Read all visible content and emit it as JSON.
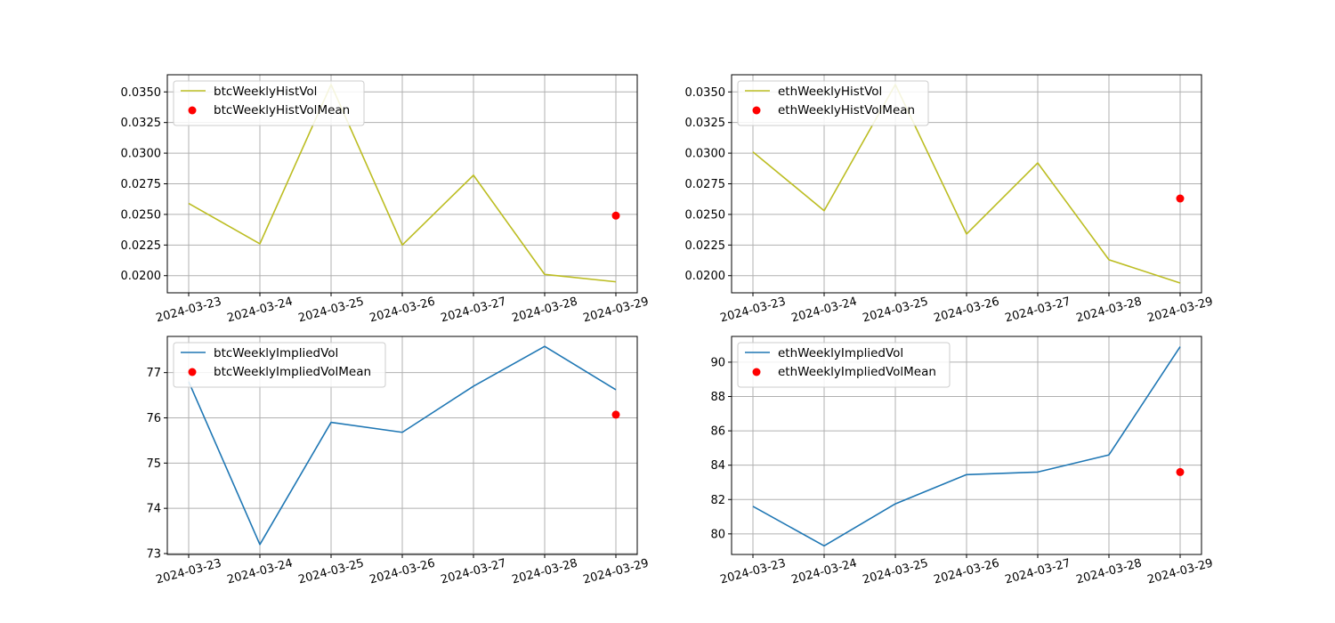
{
  "chart_data": [
    {
      "type": "line",
      "x": [
        "2024-03-23",
        "2024-03-24",
        "2024-03-25",
        "2024-03-26",
        "2024-03-27",
        "2024-03-28",
        "2024-03-29"
      ],
      "series": [
        {
          "name": "btcWeeklyHistVol",
          "kind": "line",
          "color": "#bcbd22",
          "values": [
            0.0259,
            0.0226,
            0.0356,
            0.0225,
            0.0282,
            0.0201,
            0.0195
          ]
        },
        {
          "name": "btcWeeklyHistVolMean",
          "kind": "scatter",
          "color": "#ff0000",
          "x": [
            "2024-03-29"
          ],
          "values": [
            0.0249
          ]
        }
      ],
      "ylim": [
        0.0186,
        0.0364
      ],
      "yticks": [
        0.02,
        0.0225,
        0.025,
        0.0275,
        0.03,
        0.0325,
        0.035
      ],
      "ytick_labels": [
        "0.0200",
        "0.0225",
        "0.0250",
        "0.0275",
        "0.0300",
        "0.0325",
        "0.0350"
      ],
      "grid": true,
      "legend": "upper-left"
    },
    {
      "type": "line",
      "x": [
        "2024-03-23",
        "2024-03-24",
        "2024-03-25",
        "2024-03-26",
        "2024-03-27",
        "2024-03-28",
        "2024-03-29"
      ],
      "series": [
        {
          "name": "ethWeeklyHistVol",
          "kind": "line",
          "color": "#bcbd22",
          "values": [
            0.0301,
            0.0253,
            0.0356,
            0.0234,
            0.0292,
            0.0213,
            0.0194
          ]
        },
        {
          "name": "ethWeeklyHistVolMean",
          "kind": "scatter",
          "color": "#ff0000",
          "x": [
            "2024-03-29"
          ],
          "values": [
            0.0263
          ]
        }
      ],
      "ylim": [
        0.0186,
        0.0364
      ],
      "yticks": [
        0.02,
        0.0225,
        0.025,
        0.0275,
        0.03,
        0.0325,
        0.035
      ],
      "ytick_labels": [
        "0.0200",
        "0.0225",
        "0.0250",
        "0.0275",
        "0.0300",
        "0.0325",
        "0.0350"
      ],
      "grid": true,
      "legend": "upper-left"
    },
    {
      "type": "line",
      "x": [
        "2024-03-23",
        "2024-03-24",
        "2024-03-25",
        "2024-03-26",
        "2024-03-27",
        "2024-03-28",
        "2024-03-29"
      ],
      "series": [
        {
          "name": "btcWeeklyImpliedVol",
          "kind": "line",
          "color": "#1f77b4",
          "values": [
            76.8,
            73.2,
            75.9,
            75.68,
            76.7,
            77.58,
            76.62
          ]
        },
        {
          "name": "btcWeeklyImpliedVolMean",
          "kind": "scatter",
          "color": "#ff0000",
          "x": [
            "2024-03-29"
          ],
          "values": [
            76.07
          ]
        }
      ],
      "ylim": [
        72.98,
        77.8
      ],
      "yticks": [
        73,
        74,
        75,
        76,
        77
      ],
      "ytick_labels": [
        "73",
        "74",
        "75",
        "76",
        "77"
      ],
      "grid": true,
      "legend": "upper-left"
    },
    {
      "type": "line",
      "x": [
        "2024-03-23",
        "2024-03-24",
        "2024-03-25",
        "2024-03-26",
        "2024-03-27",
        "2024-03-28",
        "2024-03-29"
      ],
      "series": [
        {
          "name": "ethWeeklyImpliedVol",
          "kind": "line",
          "color": "#1f77b4",
          "values": [
            81.6,
            79.3,
            81.75,
            83.45,
            83.6,
            84.6,
            90.9
          ]
        },
        {
          "name": "ethWeeklyImpliedVolMean",
          "kind": "scatter",
          "color": "#ff0000",
          "x": [
            "2024-03-29"
          ],
          "values": [
            83.6
          ]
        }
      ],
      "ylim": [
        78.8,
        91.5
      ],
      "yticks": [
        80,
        82,
        84,
        86,
        88,
        90
      ],
      "ytick_labels": [
        "80",
        "82",
        "84",
        "86",
        "88",
        "90"
      ],
      "grid": true,
      "legend": "upper-left"
    }
  ]
}
